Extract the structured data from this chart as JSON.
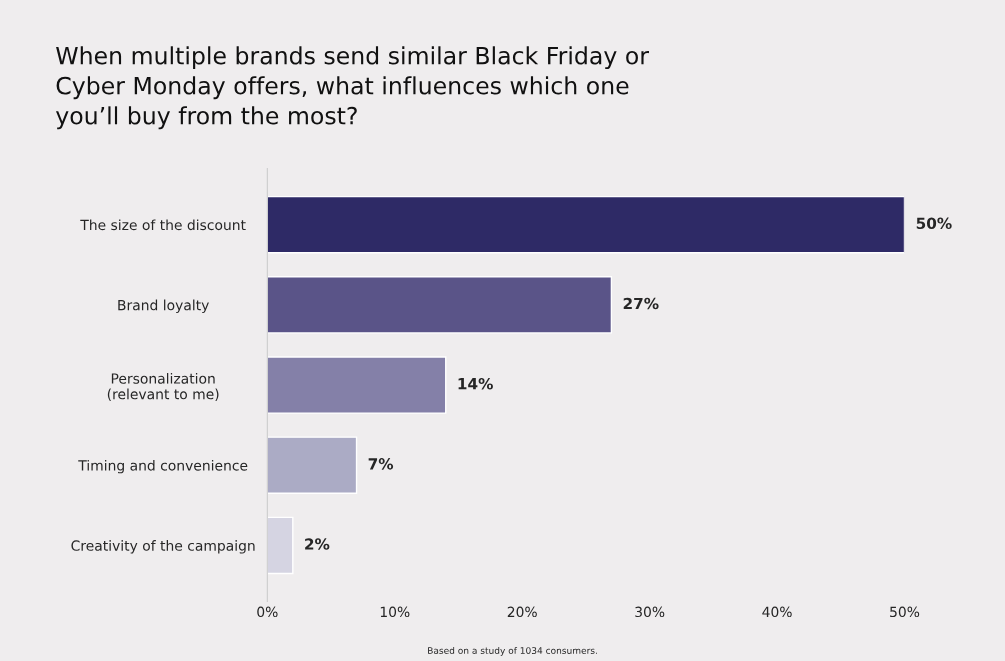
{
  "chart_data": {
    "type": "bar",
    "orientation": "horizontal",
    "title": "When multiple brands send similar Black Friday or\nCyber Monday offers, what influences which one\nyou’ll buy from the most?",
    "categories": [
      "The size of the discount",
      "Brand loyalty",
      "Personalization\n(relevant to me)",
      "Timing and convenience",
      "Creativity of the campaign"
    ],
    "values": [
      50,
      27,
      14,
      7,
      2
    ],
    "colors": [
      "#2e2a66",
      "#5a5488",
      "#8480a8",
      "#ababc5",
      "#d5d4e2"
    ],
    "value_labels": [
      "50%",
      "27%",
      "14%",
      "7%",
      "2%"
    ],
    "xlim": [
      0,
      50
    ],
    "xticks": [
      {
        "value": 0,
        "label": "0%"
      },
      {
        "value": 10,
        "label": "10%"
      },
      {
        "value": 20,
        "label": "20%"
      },
      {
        "value": 30,
        "label": "30%"
      },
      {
        "value": 40,
        "label": "40%"
      },
      {
        "value": 50,
        "label": "50%"
      }
    ],
    "grid": false,
    "legend": false,
    "annotations": [
      "Based on a study of 1034 consumers."
    ]
  }
}
